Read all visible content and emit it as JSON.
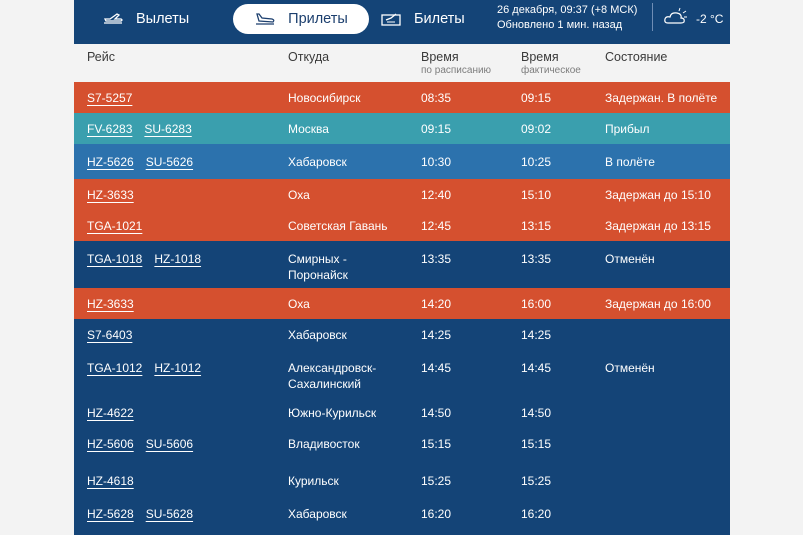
{
  "nav": {
    "departures": "Вылеты",
    "arrivals": "Прилеты",
    "tickets": "Билеты",
    "datetime": "26 декабря, 09:37 (+8 МСК)",
    "updated": "Обновлено 1 мин. назад",
    "temperature": "-2 °C",
    "weather_icon": "partly-cloudy-icon"
  },
  "columns": {
    "flight": "Рейс",
    "from": "Откуда",
    "scheduled": "Время",
    "scheduled_sub": "по расписанию",
    "actual": "Время",
    "actual_sub": "фактическое",
    "status": "Состояние"
  },
  "colors": {
    "delayed": "#d5502f",
    "arrived": "#3a9fae",
    "in_flight": "#2c72ad",
    "default": "#144477"
  },
  "rows": [
    {
      "flights": [
        "S7-5257"
      ],
      "from": "Новосибирск",
      "scheduled": "08:35",
      "actual": "09:15",
      "status": "Задержан. В полёте",
      "kind": "delayed"
    },
    {
      "flights": [
        "FV-6283",
        "SU-6283"
      ],
      "from": "Москва",
      "scheduled": "09:15",
      "actual": "09:02",
      "status": "Прибыл",
      "kind": "arrived"
    },
    {
      "flights": [
        "HZ-5626",
        "SU-5626"
      ],
      "from": "Хабаровск",
      "scheduled": "10:30",
      "actual": "10:25",
      "status": "В полёте",
      "kind": "in_flight"
    },
    {
      "flights": [
        "HZ-3633"
      ],
      "from": "Оха",
      "scheduled": "12:40",
      "actual": "15:10",
      "status": "Задержан до 15:10",
      "kind": "delayed"
    },
    {
      "flights": [
        "TGA-1021"
      ],
      "from": "Советская Гавань",
      "scheduled": "12:45",
      "actual": "13:15",
      "status": "Задержан до 13:15",
      "kind": "delayed"
    },
    {
      "flights": [
        "TGA-1018",
        "HZ-1018"
      ],
      "from": "Смирных - Поронайск",
      "scheduled": "13:35",
      "actual": "13:35",
      "status": "Отменён",
      "kind": "default"
    },
    {
      "flights": [
        "HZ-3633"
      ],
      "from": "Оха",
      "scheduled": "14:20",
      "actual": "16:00",
      "status": "Задержан до 16:00",
      "kind": "delayed"
    },
    {
      "flights": [
        "S7-6403"
      ],
      "from": "Хабаровск",
      "scheduled": "14:25",
      "actual": "14:25",
      "status": "",
      "kind": "default"
    },
    {
      "flights": [
        "TGA-1012",
        "HZ-1012"
      ],
      "from": "Александровск-Сахалинский",
      "scheduled": "14:45",
      "actual": "14:45",
      "status": "Отменён",
      "kind": "default"
    },
    {
      "flights": [
        "HZ-4622"
      ],
      "from": "Южно-Курильск",
      "scheduled": "14:50",
      "actual": "14:50",
      "status": "",
      "kind": "default"
    },
    {
      "flights": [
        "HZ-5606",
        "SU-5606"
      ],
      "from": "Владивосток",
      "scheduled": "15:15",
      "actual": "15:15",
      "status": "",
      "kind": "default"
    },
    {
      "flights": [
        "HZ-4618"
      ],
      "from": "Курильск",
      "scheduled": "15:25",
      "actual": "15:25",
      "status": "",
      "kind": "default"
    },
    {
      "flights": [
        "HZ-5628",
        "SU-5628"
      ],
      "from": "Хабаровск",
      "scheduled": "16:20",
      "actual": "16:20",
      "status": "",
      "kind": "default"
    }
  ]
}
